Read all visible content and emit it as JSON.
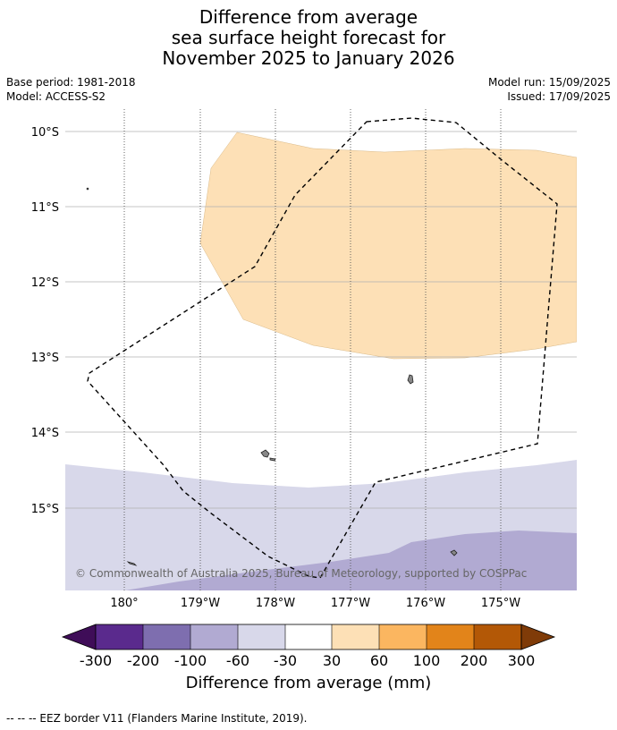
{
  "title_lines": [
    "Difference from average",
    "sea surface height forecast for",
    "November 2025 to January 2026"
  ],
  "meta_left": [
    "Base period: 1981-2018",
    "Model: ACCESS-S2"
  ],
  "meta_right": [
    "Model run: 15/09/2025",
    "Issued: 17/09/2025"
  ],
  "map": {
    "lon_ticks": [
      "180°",
      "179°W",
      "178°W",
      "177°W",
      "176°W",
      "175°W"
    ],
    "lat_ticks": [
      "10°S",
      "11°S",
      "12°S",
      "13°S",
      "14°S",
      "15°S"
    ],
    "attribution": "© Commonwealth of Australia 2025, Bureau of Meteorology, supported by COSPPac",
    "colors": {
      "light_orange": "#fde0b6",
      "light_purple": "#d8d8ea",
      "mid_purple": "#b1aad2",
      "land": "#888888"
    }
  },
  "colorbar": {
    "ticks": [
      "-300",
      "-200",
      "-100",
      "-60",
      "-30",
      "30",
      "60",
      "100",
      "200",
      "300"
    ],
    "colors": [
      "#3f0d58",
      "#5a2a8d",
      "#7e6eaf",
      "#b1aad2",
      "#d8d8ea",
      "#ffffff",
      "#fde0b6",
      "#fbb660",
      "#e2841a",
      "#b35806",
      "#7f3b08"
    ],
    "label": "Difference from average (mm)"
  },
  "footer": "--  --  -- EEZ border V11 (Flanders Marine Institute, 2019)."
}
